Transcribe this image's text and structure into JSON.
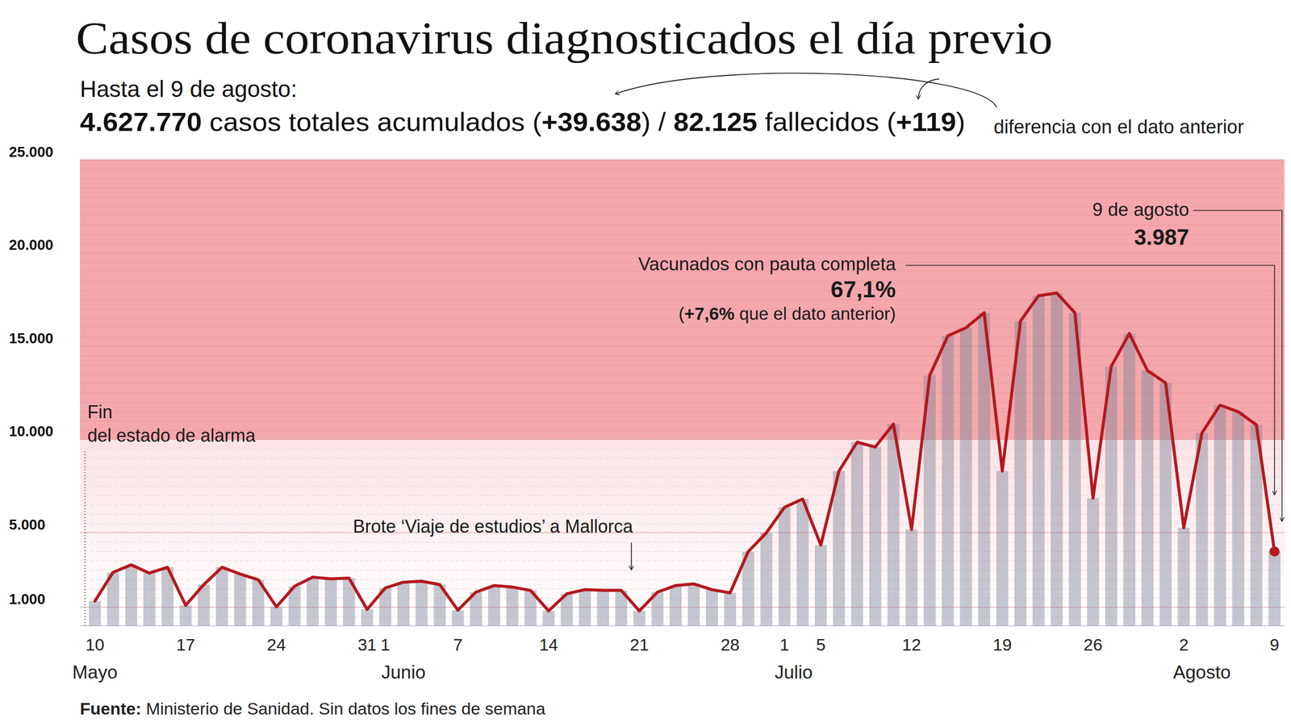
{
  "chart_data": {
    "type": "bar",
    "title": "Casos de coronavirus diagnosticados el día previo",
    "subtitle": "Hasta el 9 de agosto:",
    "summary": [
      {
        "text": "4.627.770",
        "bold": true
      },
      {
        "text": " casos totales acumulados (",
        "bold": false
      },
      {
        "text": "+39.638",
        "bold": true
      },
      {
        "text": ") / ",
        "bold": false
      },
      {
        "text": "82.125",
        "bold": true
      },
      {
        "text": " fallecidos (",
        "bold": false
      },
      {
        "text": "+119",
        "bold": true
      },
      {
        "text": ")",
        "bold": false
      }
    ],
    "categories": [
      "10",
      null,
      null,
      null,
      null,
      "17",
      null,
      null,
      null,
      null,
      "24",
      null,
      null,
      null,
      null,
      "31",
      "1",
      null,
      null,
      null,
      "7",
      null,
      null,
      null,
      null,
      "14",
      null,
      null,
      null,
      null,
      "21",
      null,
      null,
      null,
      null,
      "28",
      null,
      null,
      "1",
      null,
      "5",
      null,
      null,
      null,
      null,
      "12",
      null,
      null,
      null,
      null,
      "19",
      null,
      null,
      null,
      null,
      "26",
      null,
      null,
      null,
      null,
      "2",
      null,
      null,
      null,
      null,
      "9"
    ],
    "months": [
      {
        "label": "Mayo",
        "at": 0
      },
      {
        "label": "Junio",
        "at": 17
      },
      {
        "label": "Julio",
        "at": 38.5
      },
      {
        "label": "Agosto",
        "at": 61
      }
    ],
    "series": [
      {
        "type": "bar",
        "color": "#7f8499",
        "values": [
          1330,
          2870,
          3270,
          2830,
          3140,
          1100,
          2210,
          3140,
          2780,
          2470,
          1020,
          2120,
          2610,
          2520,
          2560,
          880,
          2030,
          2340,
          2390,
          2210,
          840,
          1810,
          2160,
          2080,
          1900,
          800,
          1720,
          1940,
          1900,
          1900,
          800,
          1810,
          2160,
          2250,
          1940,
          1770,
          3980,
          4990,
          6360,
          6800,
          4330,
          8300,
          9850,
          9590,
          10820,
          5170,
          13430,
          15550,
          15990,
          16790,
          8300,
          16340,
          17710,
          17850,
          16790,
          6850,
          13910,
          15680,
          13690,
          13030,
          5260,
          10340,
          11840,
          11480,
          10780,
          3987
        ]
      },
      {
        "type": "line",
        "color": "#b3191f",
        "values": [
          1330,
          2870,
          3270,
          2830,
          3140,
          1100,
          2210,
          3140,
          2780,
          2470,
          1020,
          2120,
          2610,
          2520,
          2560,
          880,
          2030,
          2340,
          2390,
          2210,
          840,
          1810,
          2160,
          2080,
          1900,
          800,
          1720,
          1940,
          1900,
          1900,
          800,
          1810,
          2160,
          2250,
          1940,
          1770,
          3980,
          4990,
          6360,
          6800,
          4330,
          8300,
          9850,
          9590,
          10820,
          5170,
          13430,
          15550,
          15990,
          16790,
          8300,
          16340,
          17710,
          17850,
          16790,
          6850,
          13910,
          15680,
          13690,
          13030,
          5260,
          10340,
          11840,
          11480,
          10780,
          3987
        ]
      }
    ],
    "ylim": [
      0,
      25000
    ],
    "yticks": [
      {
        "value": 1000,
        "label": "1.000"
      },
      {
        "value": 5000,
        "label": "5.000"
      },
      {
        "value": 10000,
        "label": "10.000"
      },
      {
        "value": 15000,
        "label": "15.000"
      },
      {
        "value": 20000,
        "label": "20.000"
      },
      {
        "value": 25000,
        "label": "25.000"
      }
    ],
    "grid": true,
    "bands": [
      {
        "from": 10000,
        "to": 25000,
        "color": "#f5a8ac"
      },
      {
        "from": 0,
        "to": 10000,
        "color": "#fce3e5"
      }
    ],
    "annotations": {
      "diff_note": "diferencia con el dato anterior",
      "alarm_end": [
        "Fin",
        "del estado de alarma"
      ],
      "outbreak": "Brote ‘Viaje de estudios’ a Mallorca",
      "vaccinated": {
        "label": "Vacunados con pauta completa",
        "value_label": "67,1%",
        "change": [
          {
            "text": "(",
            "bold": false
          },
          {
            "text": "+7,6%",
            "bold": true
          },
          {
            "text": " que el dato anterior)",
            "bold": false
          }
        ]
      },
      "last": {
        "label": "9 de agosto",
        "value": 3987,
        "value_label": "3.987"
      }
    },
    "source": [
      {
        "text": "Fuente:",
        "bold": true
      },
      {
        "text": " Ministerio de Sanidad. Sin datos los fines de semana",
        "bold": false
      }
    ]
  }
}
